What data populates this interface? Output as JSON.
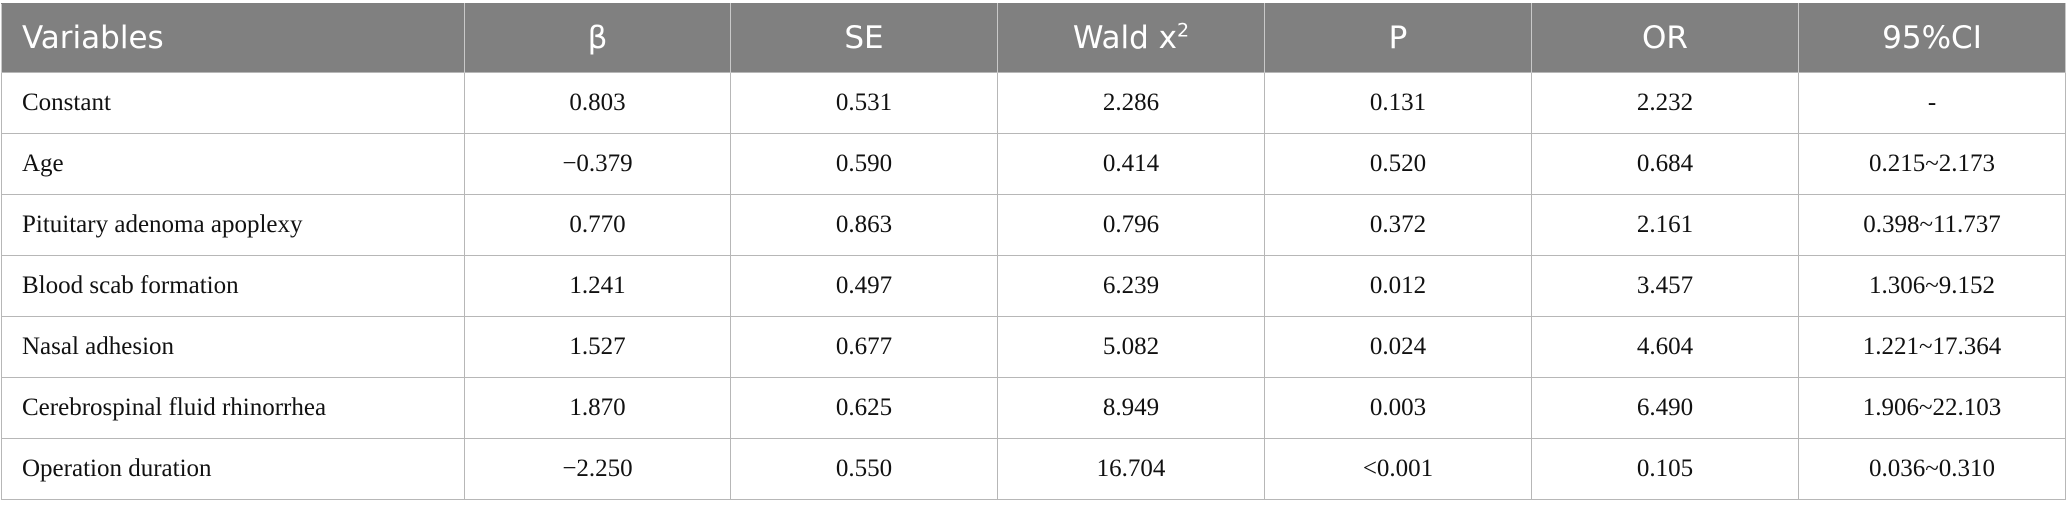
{
  "table": {
    "headers": [
      "Variables",
      "β",
      "SE",
      "Wald x",
      "P",
      "OR",
      "95%CI"
    ],
    "wald_superscript": "2",
    "rows": [
      [
        "Constant",
        "0.803",
        "0.531",
        "2.286",
        "0.131",
        "2.232",
        "-"
      ],
      [
        "Age",
        "−0.379",
        "0.590",
        "0.414",
        "0.520",
        "0.684",
        "0.215~2.173"
      ],
      [
        "Pituitary adenoma apoplexy",
        "0.770",
        "0.863",
        "0.796",
        "0.372",
        "2.161",
        "0.398~11.737"
      ],
      [
        "Blood scab formation",
        "1.241",
        "0.497",
        "6.239",
        "0.012",
        "3.457",
        "1.306~9.152"
      ],
      [
        "Nasal adhesion",
        "1.527",
        "0.677",
        "5.082",
        "0.024",
        "4.604",
        "1.221~17.364"
      ],
      [
        "Cerebrospinal fluid rhinorrhea",
        "1.870",
        "0.625",
        "8.949",
        "0.003",
        "6.490",
        "1.906~22.103"
      ],
      [
        "Operation duration",
        "−2.250",
        "0.550",
        "16.704",
        "<0.001",
        "0.105",
        "0.036~0.310"
      ]
    ]
  },
  "colors": {
    "header_bg": "#808080",
    "header_text": "#ffffff",
    "border": "#b7b7b7"
  }
}
